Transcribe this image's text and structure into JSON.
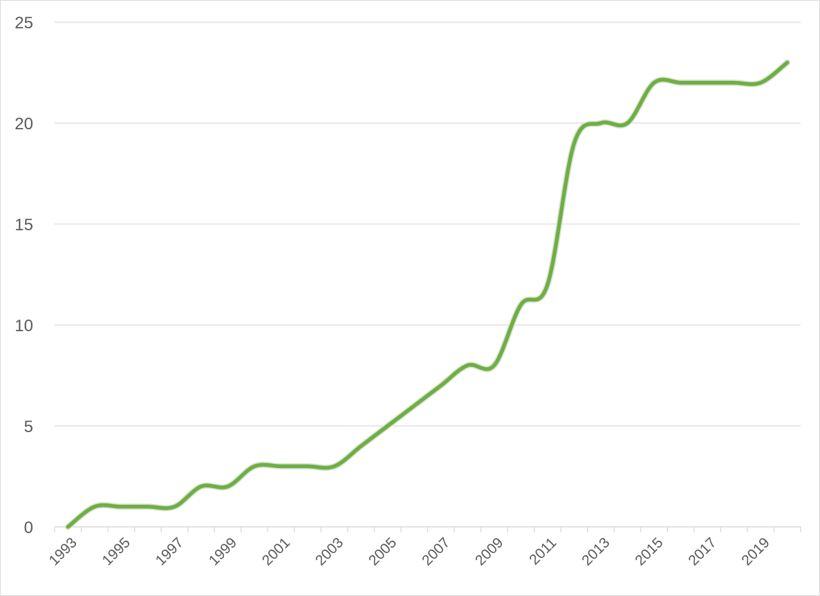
{
  "chart_data": {
    "type": "line",
    "title": "",
    "xlabel": "",
    "ylabel": "",
    "x": [
      1993,
      1994,
      1995,
      1996,
      1997,
      1998,
      1999,
      2000,
      2001,
      2002,
      2003,
      2004,
      2005,
      2006,
      2007,
      2008,
      2009,
      2010,
      2011,
      2012,
      2013,
      2014,
      2015,
      2016,
      2017,
      2018,
      2019,
      2020
    ],
    "values": [
      0,
      1,
      1,
      1,
      1,
      2,
      2,
      3,
      3,
      3,
      3,
      4,
      5,
      6,
      7,
      8,
      8,
      11,
      12,
      19,
      20,
      20,
      22,
      22,
      22,
      22,
      22,
      23
    ],
    "x_tick_labels": [
      "1993",
      "1995",
      "1997",
      "1999",
      "2001",
      "2003",
      "2005",
      "2007",
      "2009",
      "2011",
      "2013",
      "2015",
      "2017",
      "2019"
    ],
    "y_ticks": [
      0,
      5,
      10,
      15,
      20,
      25
    ],
    "ylim": [
      0,
      25
    ],
    "grid": true,
    "legend": "none",
    "smooth": true,
    "line_color": "#70ad47",
    "grid_color": "#d9d9d9",
    "axis_color": "#d9d9d9",
    "tick_text_color": "#595959"
  }
}
